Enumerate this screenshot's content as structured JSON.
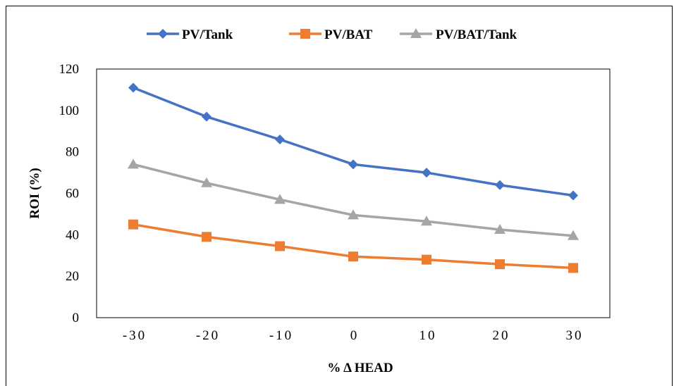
{
  "chart_data": {
    "type": "line",
    "title": "",
    "xlabel": "% Δ HEAD",
    "ylabel": "ROI  (%)",
    "categories": [
      "-30",
      "-20",
      "-10",
      "0",
      "10",
      "20",
      "30"
    ],
    "ylim": [
      0,
      120
    ],
    "yticks": [
      0,
      20,
      40,
      60,
      80,
      100,
      120
    ],
    "grid": false,
    "legend": "top-center",
    "series": [
      {
        "name": "PV/Tank",
        "color": "#4472C4",
        "marker": "diamond",
        "values": [
          111,
          97,
          86,
          74,
          70,
          64,
          59
        ]
      },
      {
        "name": "PV/BAT",
        "color": "#ED7D31",
        "marker": "square",
        "values": [
          45,
          39,
          34.5,
          29.5,
          28,
          25.8,
          24
        ]
      },
      {
        "name": "PV/BAT/Tank",
        "color": "#A5A5A5",
        "marker": "triangle",
        "values": [
          74,
          65,
          57,
          49.5,
          46.5,
          42.5,
          39.5
        ]
      }
    ]
  }
}
